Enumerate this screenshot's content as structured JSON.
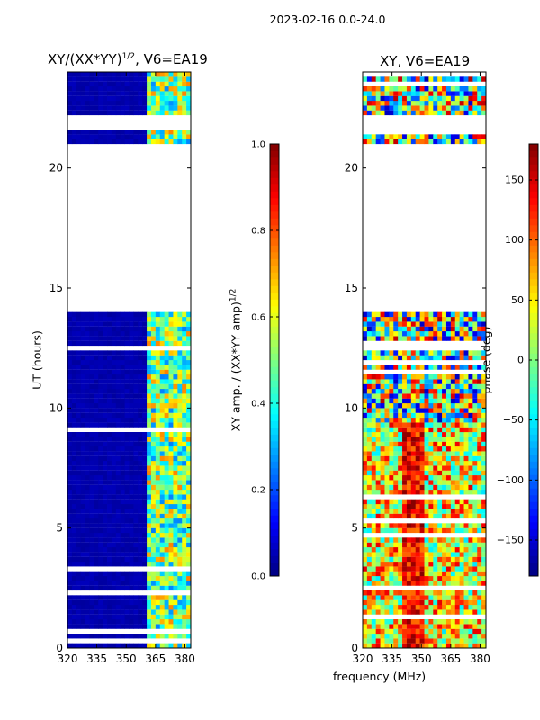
{
  "suptitle": "2023-02-16 0.0-24.0",
  "xlabel_shared": "frequency (MHz)",
  "ylabel": "UT (hours)",
  "panels": [
    {
      "title_main": "XY/(XX*YY)",
      "title_exp": "1/2",
      "title_tail": ", V6=EA19",
      "xticks": [
        "320",
        "335",
        "350",
        "365",
        "380"
      ],
      "yticks": [
        "0",
        "5",
        "10",
        "15",
        "20"
      ]
    },
    {
      "title_main": "XY, V6=EA19",
      "title_exp": "",
      "title_tail": "",
      "xticks": [
        "320",
        "335",
        "350",
        "365",
        "380"
      ],
      "yticks": [
        "0",
        "5",
        "10",
        "15",
        "20"
      ]
    }
  ],
  "colorbars": [
    {
      "label_main": "XY amp. / (XX*YY amp)",
      "label_exp": "1/2",
      "ticks": [
        "0.0",
        "0.2",
        "0.4",
        "0.6",
        "0.8",
        "1.0"
      ],
      "tick_values": [
        0.0,
        0.2,
        0.4,
        0.6,
        0.8,
        1.0
      ],
      "range": [
        0.0,
        1.0
      ]
    },
    {
      "label_main": "phase (deg)",
      "ticks": [
        "−150",
        "−100",
        "−50",
        "0",
        "50",
        "100",
        "150"
      ],
      "tick_values": [
        -150,
        -100,
        -50,
        0,
        50,
        100,
        150
      ],
      "range": [
        -180,
        180
      ]
    }
  ],
  "chart_data": [
    {
      "type": "heatmap",
      "title": "XY/(XX*YY)^1/2, V6=EA19",
      "xlabel": "frequency (MHz)",
      "ylabel": "UT (hours)",
      "xlim": [
        320,
        383
      ],
      "ylim": [
        0,
        24
      ],
      "x_ticks": [
        320,
        335,
        350,
        365,
        380
      ],
      "y_ticks": [
        0,
        5,
        10,
        15,
        20
      ],
      "value_range": [
        0.0,
        1.0
      ],
      "colormap": "jet",
      "data_gap_hours": [
        [
          14.0,
          21.0
        ],
        [
          21.7,
          22.3
        ]
      ],
      "low_band_mhz": [
        320,
        361
      ],
      "active_band_mhz": [
        361,
        383
      ],
      "low_band_value": 0.03,
      "active_band_typical": 0.45
    },
    {
      "type": "heatmap",
      "title": "XY, V6=EA19",
      "xlabel": "frequency (MHz)",
      "ylabel": "UT (hours)",
      "xlim": [
        320,
        383
      ],
      "ylim": [
        0,
        24
      ],
      "x_ticks": [
        320,
        335,
        350,
        365,
        380
      ],
      "y_ticks": [
        0,
        5,
        10,
        15,
        20
      ],
      "value_range": [
        -180,
        180
      ],
      "colormap": "jet",
      "data_gap_hours": [
        [
          14.0,
          21.0
        ],
        [
          21.7,
          22.3
        ]
      ]
    }
  ]
}
